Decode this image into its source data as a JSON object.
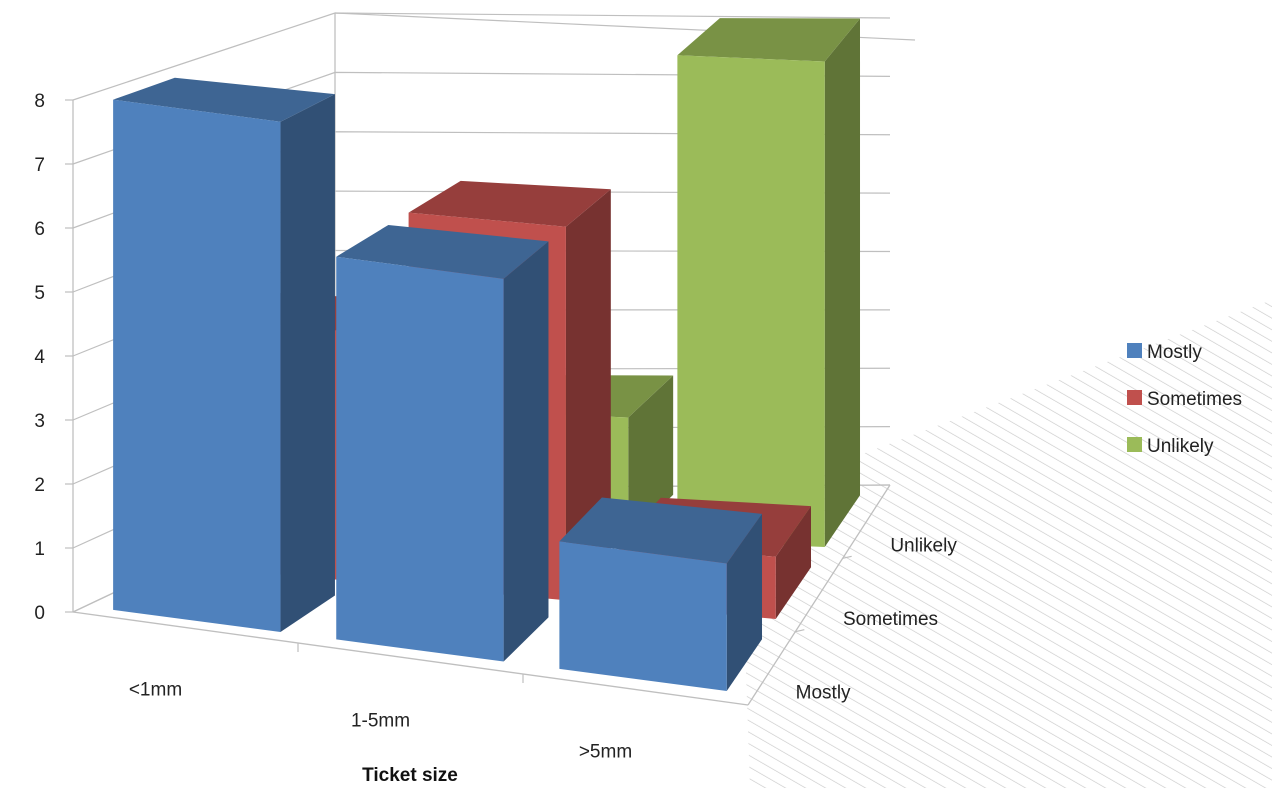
{
  "chart_data": {
    "type": "bar",
    "subtype": "3d-column",
    "categories": [
      "<1mm",
      "1-5mm",
      ">5mm"
    ],
    "depth_categories": [
      "Mostly",
      "Sometimes",
      "Unlikely"
    ],
    "series": [
      {
        "name": "Mostly",
        "color": "#4F81BD",
        "values": [
          8,
          6,
          2
        ]
      },
      {
        "name": "Sometimes",
        "color": "#C0504D",
        "values": [
          4,
          6,
          1
        ]
      },
      {
        "name": "Unlikely",
        "color": "#9BBB59",
        "values": [
          1,
          2,
          8
        ]
      }
    ],
    "yticks": [
      "0",
      "1",
      "2",
      "3",
      "4",
      "5",
      "6",
      "7",
      "8"
    ],
    "ylim": [
      0,
      8
    ],
    "xlabel": "Ticket size",
    "ylabel": "",
    "title": "",
    "grid": true,
    "legend_position": "right"
  }
}
